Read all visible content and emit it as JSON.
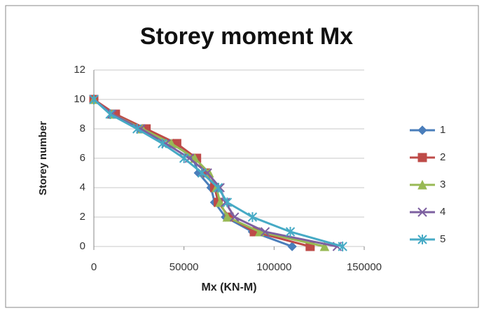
{
  "chart_data": {
    "type": "line",
    "title": "Storey moment Mx",
    "x_label": "Mx (KN-M)",
    "y_label": "Storey number",
    "xlim": [
      0,
      150000
    ],
    "xticks": [
      0,
      50000,
      100000,
      150000
    ],
    "ylim": [
      0,
      12
    ],
    "yticks": [
      0,
      2,
      4,
      6,
      8,
      10,
      12
    ],
    "grid": true,
    "legend": "right",
    "series": [
      {
        "name": "1",
        "color": "#4a7ebb",
        "marker": "diamond",
        "x": [
          0,
          11000,
          28000,
          44000,
          55000,
          58000,
          65000,
          67000,
          73000,
          88000,
          110000
        ],
        "values": [
          10,
          9,
          8,
          7,
          6,
          5,
          4,
          3,
          2,
          1,
          0
        ]
      },
      {
        "name": "2",
        "color": "#be4b48",
        "marker": "square",
        "x": [
          0,
          12000,
          29000,
          46000,
          57000,
          62000,
          67000,
          69000,
          75000,
          89000,
          120000
        ],
        "values": [
          10,
          9,
          8,
          7,
          6,
          5,
          4,
          3,
          2,
          1,
          0
        ]
      },
      {
        "name": "3",
        "color": "#98b954",
        "marker": "triangle",
        "x": [
          0,
          10000,
          27000,
          43000,
          56000,
          64000,
          68000,
          70000,
          74000,
          92000,
          128000
        ],
        "values": [
          10,
          9,
          8,
          7,
          6,
          5,
          4,
          3,
          2,
          1,
          0
        ]
      },
      {
        "name": "4",
        "color": "#7d60a0",
        "marker": "x",
        "x": [
          0,
          10000,
          26000,
          40000,
          53000,
          63000,
          70000,
          73000,
          78000,
          95000,
          135000
        ],
        "values": [
          10,
          9,
          8,
          7,
          6,
          5,
          4,
          3,
          2,
          1,
          0
        ]
      },
      {
        "name": "5",
        "color": "#46aac5",
        "marker": "star",
        "x": [
          0,
          9000,
          24000,
          38000,
          50000,
          60000,
          69000,
          74000,
          88000,
          109000,
          138000
        ],
        "values": [
          10,
          9,
          8,
          7,
          6,
          5,
          4,
          3,
          2,
          1,
          0
        ]
      }
    ]
  }
}
